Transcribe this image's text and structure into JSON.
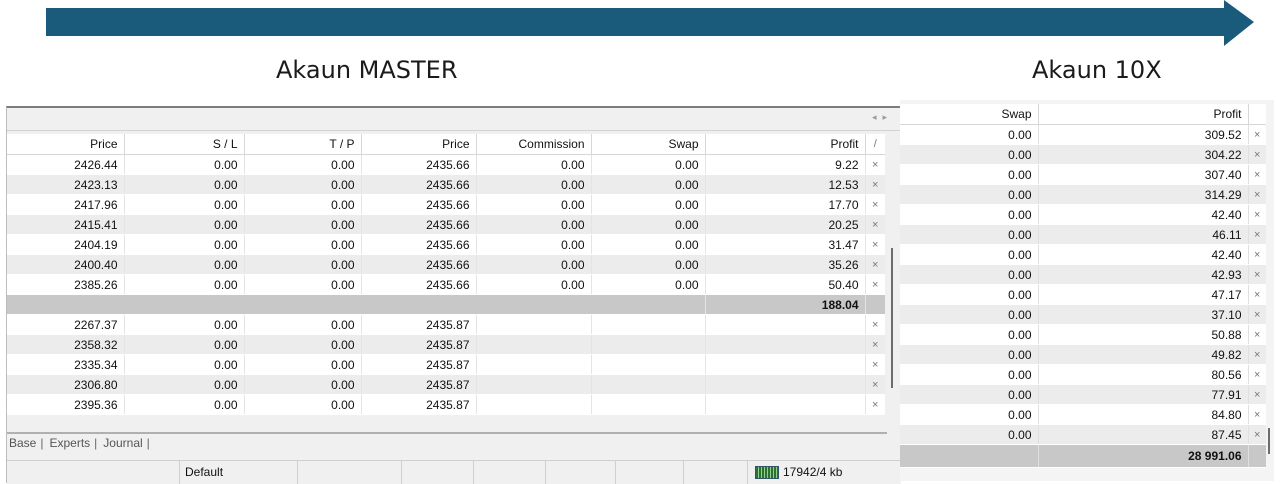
{
  "captions": {
    "master": "Akaun MASTER",
    "tenx": "Akaun 10X"
  },
  "colors": {
    "arrow": "#1a5a7a",
    "total_row": "#c8c8c8",
    "alt_row": "#ececec"
  },
  "master": {
    "columns": [
      "Price",
      "S / L",
      "T / P",
      "Price",
      "Commission",
      "Swap",
      "Profit"
    ],
    "sort_marker": "/",
    "rows": [
      [
        "2426.44",
        "0.00",
        "0.00",
        "2435.66",
        "0.00",
        "0.00",
        "9.22"
      ],
      [
        "2423.13",
        "0.00",
        "0.00",
        "2435.66",
        "0.00",
        "0.00",
        "12.53"
      ],
      [
        "2417.96",
        "0.00",
        "0.00",
        "2435.66",
        "0.00",
        "0.00",
        "17.70"
      ],
      [
        "2415.41",
        "0.00",
        "0.00",
        "2435.66",
        "0.00",
        "0.00",
        "20.25"
      ],
      [
        "2404.19",
        "0.00",
        "0.00",
        "2435.66",
        "0.00",
        "0.00",
        "31.47"
      ],
      [
        "2400.40",
        "0.00",
        "0.00",
        "2435.66",
        "0.00",
        "0.00",
        "35.26"
      ],
      [
        "2385.26",
        "0.00",
        "0.00",
        "2435.66",
        "0.00",
        "0.00",
        "50.40"
      ]
    ],
    "total": "188.04",
    "orders": [
      [
        "2267.37",
        "0.00",
        "0.00",
        "2435.87"
      ],
      [
        "2358.32",
        "0.00",
        "0.00",
        "2435.87"
      ],
      [
        "2335.34",
        "0.00",
        "0.00",
        "2435.87"
      ],
      [
        "2306.80",
        "0.00",
        "0.00",
        "2435.87"
      ],
      [
        "2395.36",
        "0.00",
        "0.00",
        "2435.87"
      ]
    ],
    "close_glyph": "×",
    "tabs": [
      "Base",
      "Experts",
      "Journal"
    ],
    "status": {
      "profile": "Default",
      "traffic": "17942/4 kb"
    }
  },
  "tenx": {
    "columns": [
      "Swap",
      "Profit"
    ],
    "rows": [
      [
        "0.00",
        "309.52"
      ],
      [
        "0.00",
        "304.22"
      ],
      [
        "0.00",
        "307.40"
      ],
      [
        "0.00",
        "314.29"
      ],
      [
        "0.00",
        "42.40"
      ],
      [
        "0.00",
        "46.11"
      ],
      [
        "0.00",
        "42.40"
      ],
      [
        "0.00",
        "42.93"
      ],
      [
        "0.00",
        "47.17"
      ],
      [
        "0.00",
        "37.10"
      ],
      [
        "0.00",
        "50.88"
      ],
      [
        "0.00",
        "49.82"
      ],
      [
        "0.00",
        "80.56"
      ],
      [
        "0.00",
        "77.91"
      ],
      [
        "0.00",
        "84.80"
      ],
      [
        "0.00",
        "87.45"
      ]
    ],
    "total": "28 991.06"
  }
}
